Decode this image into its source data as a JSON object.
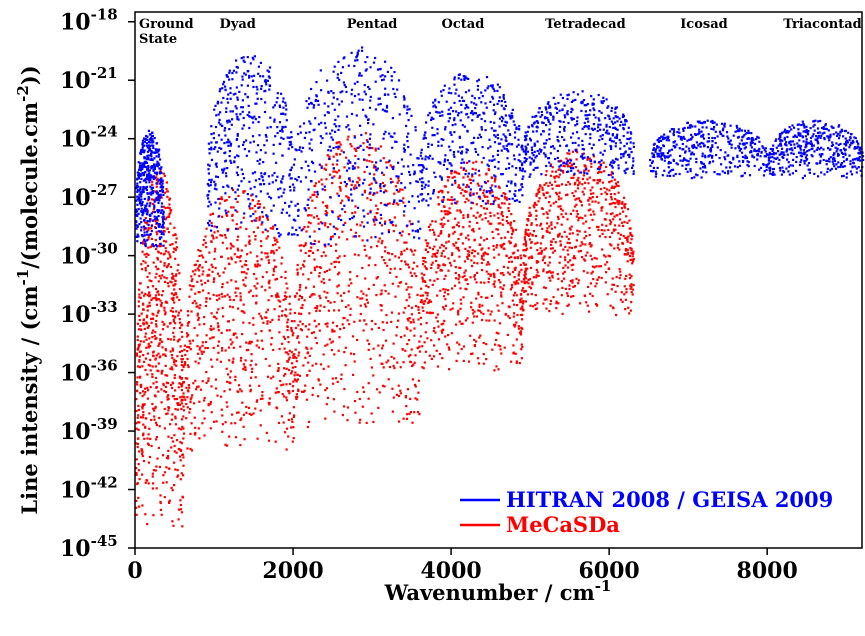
{
  "chart_data": {
    "type": "scatter",
    "xlabel": "Wavenumber / cm",
    "xlabel_sup": "-1",
    "ylabel_parts": [
      "Line intensity / (cm",
      "-1",
      "/(molecule.cm",
      "-2",
      "))"
    ],
    "xlim": [
      0,
      9200
    ],
    "ylim_exp": [
      -45,
      -17.5
    ],
    "y_scale": "log",
    "x_ticks": [
      {
        "value": 0,
        "label": "0"
      },
      {
        "value": 2000,
        "label": "2000"
      },
      {
        "value": 4000,
        "label": "4000"
      },
      {
        "value": 6000,
        "label": "6000"
      },
      {
        "value": 8000,
        "label": "8000"
      }
    ],
    "y_tick_exponents": [
      "-18",
      "-21",
      "-24",
      "-27",
      "-30",
      "-33",
      "-36",
      "-39",
      "-42",
      "-45"
    ],
    "y_tick_base": "10",
    "grid": false,
    "legend_position": "bottom-right",
    "bands": [
      {
        "label": "Ground",
        "label2": "State",
        "x": 0
      },
      {
        "label": "Dyad",
        "x": 1300
      },
      {
        "label": "Pentad",
        "x": 3000
      },
      {
        "label": "Octad",
        "x": 4150
      },
      {
        "label": "Tetradecad",
        "x": 5700
      },
      {
        "label": "Icosad",
        "x": 7200
      },
      {
        "label": "Triacontad",
        "x": 8700
      }
    ],
    "series": [
      {
        "name": "MeCaSDa",
        "color": "#ff0000",
        "regions": [
          {
            "x": [
              0,
              600
            ],
            "peak": -25.5,
            "floor": -44
          },
          {
            "x": [
              600,
              2000
            ],
            "peak": -26.5,
            "floor": -40
          },
          {
            "x": [
              2000,
              3600
            ],
            "peak": -23.5,
            "floor": -39
          },
          {
            "x": [
              3600,
              4900
            ],
            "peak": -25,
            "floor": -36
          },
          {
            "x": [
              4900,
              6300
            ],
            "peak": -24.5,
            "floor": -33
          }
        ]
      },
      {
        "name": "HITRAN 2008 / GEISA 2009",
        "color": "#0000ff",
        "regions": [
          {
            "x": [
              0,
              350
            ],
            "peak": -23.5,
            "floor": -29.5
          },
          {
            "x": [
              900,
              2000
            ],
            "peak": -19.5,
            "floor": -29
          },
          {
            "x": [
              2000,
              3600
            ],
            "peak": -19.2,
            "floor": -29.5
          },
          {
            "x": [
              3600,
              4900
            ],
            "peak": -20.5,
            "floor": -27.5
          },
          {
            "x": [
              4900,
              6300
            ],
            "peak": -21.5,
            "floor": -26
          },
          {
            "x": [
              6500,
              8000
            ],
            "peak": -23,
            "floor": -26
          },
          {
            "x": [
              8000,
              9200
            ],
            "peak": -23,
            "floor": -26
          }
        ]
      }
    ]
  }
}
